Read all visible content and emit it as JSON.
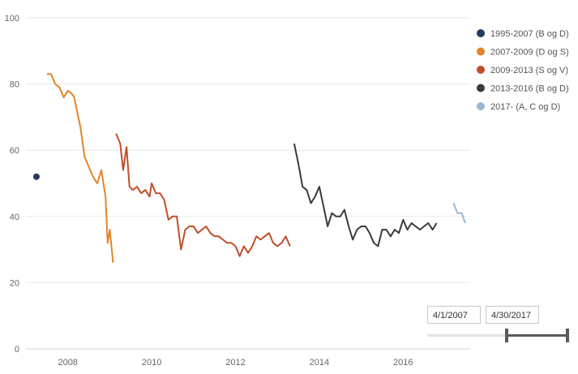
{
  "chart_data": {
    "type": "line",
    "title": "",
    "xlabel": "",
    "ylabel": "",
    "ylim": [
      0,
      100
    ],
    "yticks": [
      0,
      20,
      40,
      60,
      80,
      100
    ],
    "xlim": [
      2007.0,
      2017.6
    ],
    "xticks": [
      2008,
      2010,
      2012,
      2014,
      2016
    ],
    "grid": "horizontal",
    "legend_position": "right",
    "series": [
      {
        "name": "1995-2007 (B og D)",
        "color": "#243a5e",
        "style": "point",
        "x": [
          2007.25
        ],
        "y": [
          52
        ]
      },
      {
        "name": "2007-2009 (D og S)",
        "color": "#e2842a",
        "style": "line",
        "x": [
          2007.5,
          2007.6,
          2007.7,
          2007.8,
          2007.9,
          2008.0,
          2008.1,
          2008.15,
          2008.25,
          2008.3,
          2008.4,
          2008.5,
          2008.6,
          2008.7,
          2008.8,
          2008.85,
          2008.9,
          2008.95,
          2009.0,
          2009.08
        ],
        "y": [
          83,
          83,
          80,
          79,
          76,
          78,
          77,
          76,
          70,
          67,
          58,
          55,
          52,
          50,
          54,
          50,
          46,
          32,
          36,
          26
        ]
      },
      {
        "name": "2009-2013 (S og V)",
        "color": "#c14e2a",
        "style": "line",
        "x": [
          2009.15,
          2009.25,
          2009.32,
          2009.4,
          2009.47,
          2009.55,
          2009.65,
          2009.75,
          2009.85,
          2009.95,
          2010.0,
          2010.1,
          2010.2,
          2010.3,
          2010.4,
          2010.5,
          2010.6,
          2010.7,
          2010.8,
          2010.9,
          2011.0,
          2011.1,
          2011.2,
          2011.3,
          2011.4,
          2011.5,
          2011.6,
          2011.7,
          2011.8,
          2011.9,
          2012.0,
          2012.1,
          2012.2,
          2012.3,
          2012.4,
          2012.5,
          2012.6,
          2012.7,
          2012.8,
          2012.9,
          2013.0,
          2013.1,
          2013.2,
          2013.3
        ],
        "y": [
          65,
          62,
          54,
          61,
          49,
          48,
          49,
          47,
          48,
          46,
          50,
          47,
          47,
          45,
          39,
          40,
          40,
          30,
          36,
          37,
          37,
          35,
          36,
          37,
          35,
          34,
          34,
          33,
          32,
          32,
          31,
          28,
          31,
          29,
          31,
          34,
          33,
          34,
          35,
          32,
          31,
          32,
          34,
          31
        ]
      },
      {
        "name": "2013-2016 (B og D)",
        "color": "#3a3a3a",
        "style": "line",
        "x": [
          2013.4,
          2013.5,
          2013.6,
          2013.7,
          2013.8,
          2013.9,
          2014.0,
          2014.1,
          2014.2,
          2014.3,
          2014.4,
          2014.5,
          2014.6,
          2014.7,
          2014.8,
          2014.9,
          2015.0,
          2015.1,
          2015.2,
          2015.3,
          2015.4,
          2015.5,
          2015.6,
          2015.7,
          2015.8,
          2015.9,
          2016.0,
          2016.1,
          2016.2,
          2016.3,
          2016.4,
          2016.5,
          2016.6,
          2016.7,
          2016.8
        ],
        "y": [
          62,
          56,
          49,
          48,
          44,
          46,
          49,
          43,
          37,
          41,
          40,
          40,
          42,
          37,
          33,
          36,
          37,
          37,
          35,
          32,
          31,
          36,
          36,
          34,
          36,
          35,
          39,
          36,
          38,
          37,
          36,
          37,
          38,
          36,
          38
        ]
      },
      {
        "name": "2017- (A, C og D)",
        "color": "#9ab8d3",
        "style": "line",
        "x": [
          2017.2,
          2017.3,
          2017.4,
          2017.48
        ],
        "y": [
          44,
          41,
          41,
          38
        ]
      }
    ]
  },
  "range_selector": {
    "from_date": "4/1/2007",
    "to_date": "4/30/2017",
    "start_fraction": 0.55,
    "end_fraction": 1.0
  }
}
